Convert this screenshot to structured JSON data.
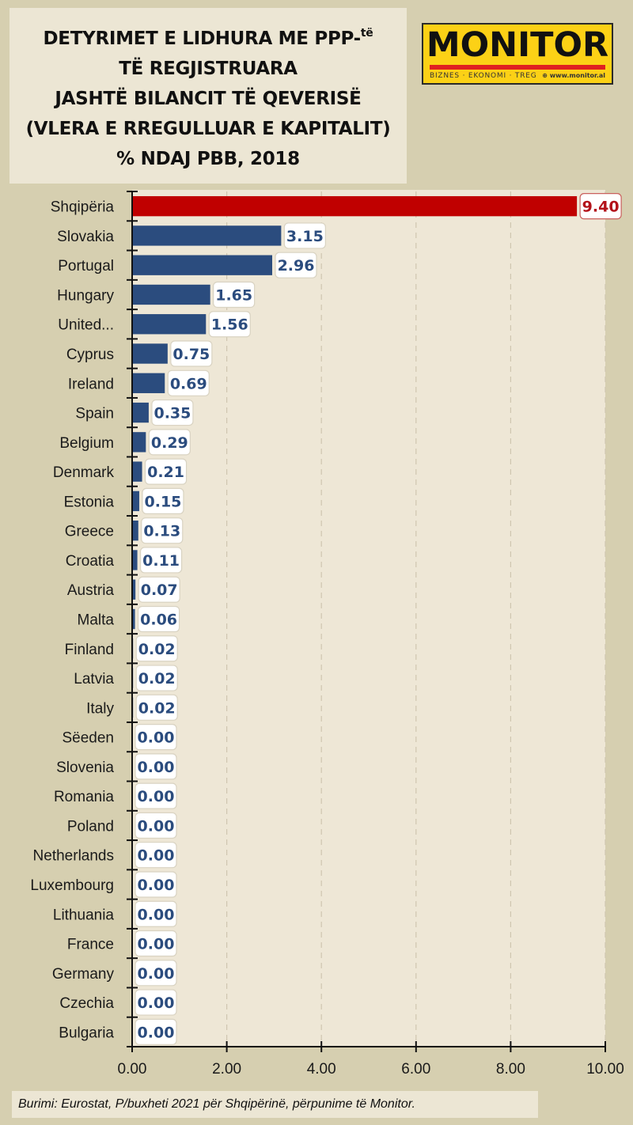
{
  "header": {
    "title_lines": [
      "DETYRIMET E LIDHURA ME  PPP-",
      "TË REGJISTRUARA",
      "JASHTË BILANCIT TË QEVERISË",
      "(VLERA E RREGULLUAR E KAPITALIT)",
      "% NDAJ PBB, 2018"
    ],
    "title_superscript": "të"
  },
  "logo": {
    "name": "MONITOR",
    "tagline": "BIZNES · EKONOMI · TREG",
    "url": "www.monitor.al",
    "colors": {
      "background": "#fcd116",
      "bar": "#e02020"
    }
  },
  "chart_data": {
    "type": "bar",
    "orientation": "horizontal",
    "title": "DETYRIMET E LIDHURA ME PPP-të TË REGJISTRUARA JASHTË BILANCIT TË QEVERISË (VLERA E RREGULLUAR E KAPITALIT) % NDAJ PBB, 2018",
    "xlabel": "",
    "ylabel": "",
    "xlim": [
      0,
      10
    ],
    "xticks": [
      "0.00",
      "2.00",
      "4.00",
      "6.00",
      "8.00",
      "10.00"
    ],
    "grid": "vertical-dashed",
    "categories": [
      "Shqipëria",
      "Slovakia",
      "Portugal",
      "Hungary",
      "United...",
      "Cyprus",
      "Ireland",
      "Spain",
      "Belgium",
      "Denmark",
      "Estonia",
      "Greece",
      "Croatia",
      "Austria",
      "Malta",
      "Finland",
      "Latvia",
      "Italy",
      "Sëeden",
      "Slovenia",
      "Romania",
      "Poland",
      "Netherlands",
      "Luxembourg",
      "Lithuania",
      "France",
      "Germany",
      "Czechia",
      "Bulgaria"
    ],
    "values": [
      9.4,
      3.15,
      2.96,
      1.65,
      1.56,
      0.75,
      0.69,
      0.35,
      0.29,
      0.21,
      0.15,
      0.13,
      0.11,
      0.07,
      0.06,
      0.02,
      0.02,
      0.02,
      0.0,
      0.0,
      0.0,
      0.0,
      0.0,
      0.0,
      0.0,
      0.0,
      0.0,
      0.0,
      0.0
    ],
    "labels": [
      "9.40",
      "3.15",
      "2.96",
      "1.65",
      "1.56",
      "0.75",
      "0.69",
      "0.35",
      "0.29",
      "0.21",
      "0.15",
      "0.13",
      "0.11",
      "0.07",
      "0.06",
      "0.02",
      "0.02",
      "0.02",
      "0.00",
      "0.00",
      "0.00",
      "0.00",
      "0.00",
      "0.00",
      "0.00",
      "0.00",
      "0.00",
      "0.00",
      "0.00"
    ],
    "colors": {
      "highlight": "#c00000",
      "default": "#2b4c7e",
      "highlight_category": "Shqipëria"
    }
  },
  "footer": {
    "source": "Burimi: Eurostat, P/buxheti 2021 për Shqipërinë, përpunime të Monitor."
  }
}
